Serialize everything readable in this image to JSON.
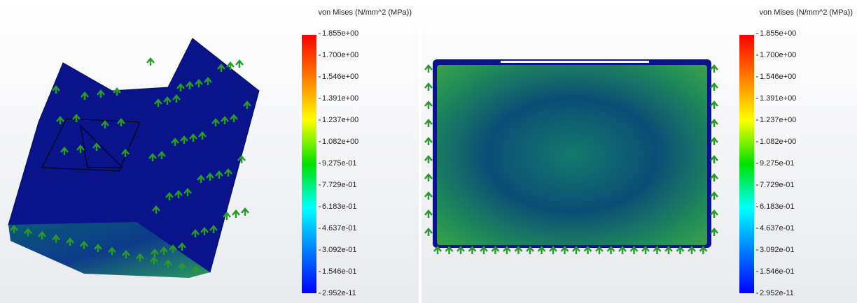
{
  "panels": [
    {
      "legend_title": "von Mises (N/mm^2 (MPa))",
      "legend_labels": [
        "1.855e+00",
        "1.700e+00",
        "1.546e+00",
        "1.391e+00",
        "1.237e+00",
        "1.082e+00",
        "9.275e-01",
        "7.729e-01",
        "6.183e-01",
        "4.637e-01",
        "3.092e-01",
        "1.546e-01",
        "2.952e-11"
      ]
    },
    {
      "legend_title": "von Mises (N/mm^2 (MPa))",
      "legend_labels": [
        "1.855e+00",
        "1.700e+00",
        "1.546e+00",
        "1.391e+00",
        "1.237e+00",
        "1.082e+00",
        "9.275e-01",
        "7.729e-01",
        "6.183e-01",
        "4.637e-01",
        "3.092e-01",
        "1.546e-01",
        "2.952e-11"
      ]
    }
  ]
}
